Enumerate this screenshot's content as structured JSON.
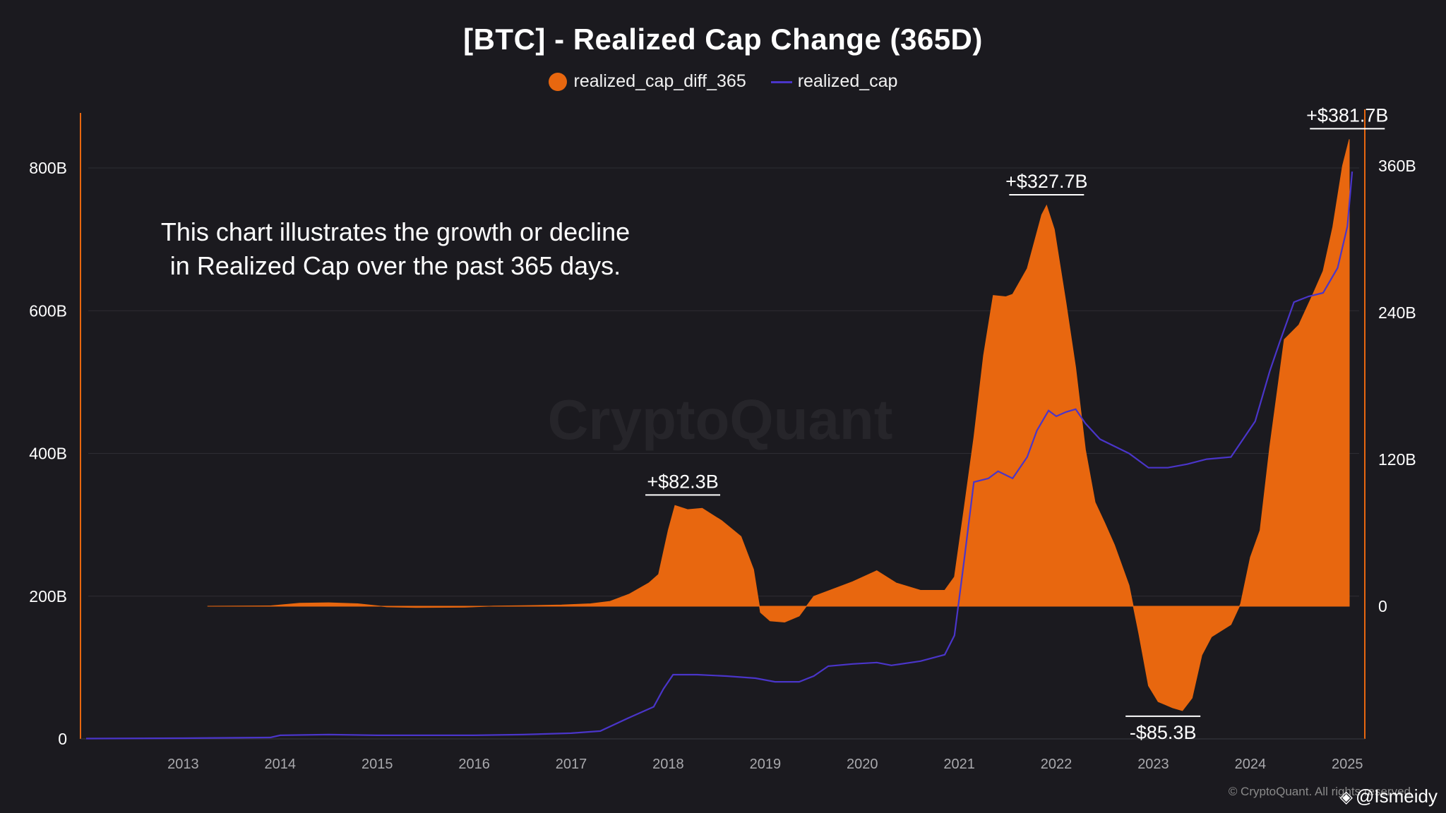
{
  "title": "[BTC] - Realized Cap Change (365D)",
  "legend": [
    {
      "label": "realized_cap_diff_365",
      "color": "#e8670f",
      "kind": "dot"
    },
    {
      "label": "realized_cap",
      "color": "#4a35c9",
      "kind": "line"
    }
  ],
  "description_lines": [
    "This chart illustrates the growth or decline",
    "in Realized Cap over the past 365 days."
  ],
  "watermark": "CryptoQuant",
  "footer": {
    "copyright": "© CryptoQuant. All rights reserved",
    "handle": "@Ismeidy",
    "logo_icon": "binance-logo-icon"
  },
  "colors": {
    "background": "#1b1a1f",
    "bar": "#e8670f",
    "line": "#4a35c9",
    "axis": "#e8670f",
    "grid": "#2e2d33"
  },
  "chart_data": {
    "type": "area",
    "title": "[BTC] - Realized Cap Change (365D)",
    "x_ticks": [
      "2013",
      "2014",
      "2015",
      "2016",
      "2017",
      "2018",
      "2019",
      "2020",
      "2021",
      "2022",
      "2023",
      "2024",
      "2025"
    ],
    "xlim": [
      2012.0,
      2025.1
    ],
    "left_axis": {
      "ticks": [
        "0",
        "200B",
        "400B",
        "600B",
        "800B"
      ],
      "tick_values": [
        0,
        200,
        400,
        600,
        800
      ],
      "range": [
        0,
        850
      ],
      "unit": "B USD",
      "series": "realized_cap"
    },
    "right_axis": {
      "ticks": [
        "0",
        "120B",
        "240B",
        "360B"
      ],
      "tick_values": [
        0,
        120,
        240,
        360
      ],
      "range": [
        -110,
        385
      ],
      "unit": "B USD",
      "series": "realized_cap_diff_365"
    },
    "grid": true,
    "legend_position": "top-center",
    "series": [
      {
        "name": "realized_cap_diff_365",
        "axis": "right",
        "style": "bars",
        "points": [
          [
            2013.25,
            0
          ],
          [
            2013.9,
            0.3
          ],
          [
            2014.2,
            2.5
          ],
          [
            2014.5,
            2.8
          ],
          [
            2014.8,
            2
          ],
          [
            2015.1,
            -0.5
          ],
          [
            2015.4,
            -1
          ],
          [
            2015.9,
            -0.8
          ],
          [
            2016.2,
            0.1
          ],
          [
            2016.5,
            0.4
          ],
          [
            2016.9,
            1
          ],
          [
            2017.2,
            2
          ],
          [
            2017.4,
            4
          ],
          [
            2017.6,
            10
          ],
          [
            2017.8,
            19
          ],
          [
            2017.9,
            26
          ],
          [
            2018.0,
            62
          ],
          [
            2018.07,
            82.3
          ],
          [
            2018.2,
            79
          ],
          [
            2018.35,
            80
          ],
          [
            2018.55,
            70
          ],
          [
            2018.75,
            57
          ],
          [
            2018.88,
            30
          ],
          [
            2018.95,
            -5
          ],
          [
            2019.05,
            -12
          ],
          [
            2019.2,
            -13
          ],
          [
            2019.35,
            -8
          ],
          [
            2019.5,
            8
          ],
          [
            2019.7,
            14
          ],
          [
            2019.9,
            20
          ],
          [
            2020.15,
            29
          ],
          [
            2020.35,
            19
          ],
          [
            2020.6,
            13
          ],
          [
            2020.85,
            13
          ],
          [
            2020.95,
            24
          ],
          [
            2021.05,
            80
          ],
          [
            2021.15,
            138
          ],
          [
            2021.25,
            205
          ],
          [
            2021.35,
            254
          ],
          [
            2021.48,
            253
          ],
          [
            2021.55,
            255
          ],
          [
            2021.7,
            276
          ],
          [
            2021.85,
            320
          ],
          [
            2021.9,
            327.7
          ],
          [
            2021.98,
            308
          ],
          [
            2022.1,
            248
          ],
          [
            2022.2,
            195
          ],
          [
            2022.3,
            128
          ],
          [
            2022.4,
            85
          ],
          [
            2022.5,
            68
          ],
          [
            2022.6,
            50
          ],
          [
            2022.75,
            17
          ],
          [
            2022.85,
            -22
          ],
          [
            2022.95,
            -65
          ],
          [
            2023.05,
            -78
          ],
          [
            2023.2,
            -83
          ],
          [
            2023.3,
            -85.3
          ],
          [
            2023.4,
            -75
          ],
          [
            2023.5,
            -40
          ],
          [
            2023.6,
            -25
          ],
          [
            2023.8,
            -15
          ],
          [
            2023.9,
            2
          ],
          [
            2024.0,
            40
          ],
          [
            2024.1,
            62
          ],
          [
            2024.2,
            130
          ],
          [
            2024.35,
            218
          ],
          [
            2024.5,
            230
          ],
          [
            2024.65,
            256
          ],
          [
            2024.75,
            274
          ],
          [
            2024.85,
            310
          ],
          [
            2024.95,
            360
          ],
          [
            2025.02,
            381.7
          ]
        ]
      },
      {
        "name": "realized_cap",
        "axis": "left",
        "style": "line",
        "points": [
          [
            2012.0,
            0.5
          ],
          [
            2013.0,
            1
          ],
          [
            2013.9,
            2
          ],
          [
            2014.0,
            5
          ],
          [
            2014.5,
            6
          ],
          [
            2015.0,
            5
          ],
          [
            2016.0,
            5
          ],
          [
            2016.5,
            6
          ],
          [
            2017.0,
            8
          ],
          [
            2017.3,
            11
          ],
          [
            2017.6,
            30
          ],
          [
            2017.85,
            45
          ],
          [
            2017.95,
            70
          ],
          [
            2018.05,
            90
          ],
          [
            2018.3,
            90
          ],
          [
            2018.6,
            88
          ],
          [
            2018.9,
            85
          ],
          [
            2019.1,
            80
          ],
          [
            2019.35,
            80
          ],
          [
            2019.5,
            88
          ],
          [
            2019.65,
            102
          ],
          [
            2019.9,
            105
          ],
          [
            2020.15,
            107
          ],
          [
            2020.3,
            103
          ],
          [
            2020.6,
            109
          ],
          [
            2020.85,
            118
          ],
          [
            2020.95,
            145
          ],
          [
            2021.05,
            250
          ],
          [
            2021.15,
            360
          ],
          [
            2021.3,
            365
          ],
          [
            2021.4,
            375
          ],
          [
            2021.55,
            365
          ],
          [
            2021.7,
            395
          ],
          [
            2021.8,
            432
          ],
          [
            2021.92,
            460
          ],
          [
            2022.0,
            452
          ],
          [
            2022.1,
            458
          ],
          [
            2022.2,
            462
          ],
          [
            2022.3,
            442
          ],
          [
            2022.45,
            420
          ],
          [
            2022.75,
            400
          ],
          [
            2022.95,
            380
          ],
          [
            2023.15,
            380
          ],
          [
            2023.35,
            385
          ],
          [
            2023.55,
            392
          ],
          [
            2023.8,
            395
          ],
          [
            2023.95,
            425
          ],
          [
            2024.05,
            445
          ],
          [
            2024.2,
            515
          ],
          [
            2024.3,
            555
          ],
          [
            2024.45,
            612
          ],
          [
            2024.6,
            620
          ],
          [
            2024.75,
            625
          ],
          [
            2024.9,
            660
          ],
          [
            2025.0,
            718
          ],
          [
            2025.05,
            795
          ]
        ]
      }
    ],
    "annotations": [
      {
        "text": "+$82.3B",
        "x": 2018.15,
        "y": 82.3,
        "axis": "right",
        "position": "above"
      },
      {
        "text": "+$327.7B",
        "x": 2021.9,
        "y": 327.7,
        "axis": "right",
        "position": "above"
      },
      {
        "text": "-$85.3B",
        "x": 2023.1,
        "y": -85.3,
        "axis": "right",
        "position": "below"
      },
      {
        "text": "+$381.7B",
        "x": 2025.0,
        "y": 381.7,
        "axis": "right",
        "position": "above"
      }
    ]
  }
}
